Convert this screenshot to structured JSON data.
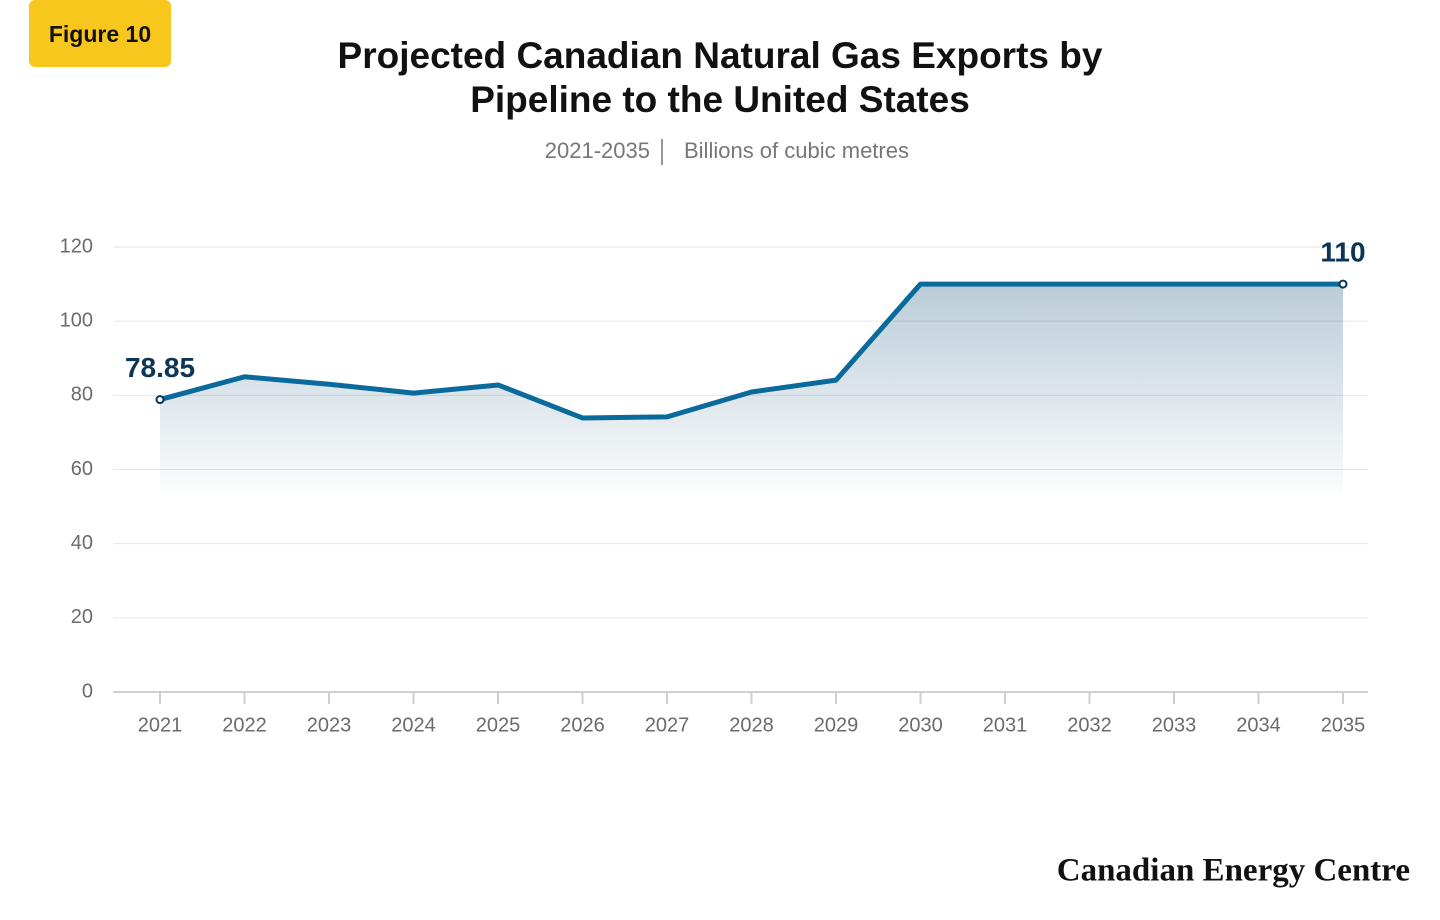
{
  "figure_label": "Figure 10",
  "chart_data": {
    "type": "line",
    "title": [
      "Projected Canadian Natural Gas Exports by",
      "Pipeline to the United States"
    ],
    "subtitle": "2021-2035",
    "unit": "Billions of cubic metres",
    "categories": [
      "2021",
      "2022",
      "2023",
      "2024",
      "2025",
      "2026",
      "2027",
      "2028",
      "2029",
      "2030",
      "2031",
      "2032",
      "2033",
      "2034",
      "2035"
    ],
    "series": [
      {
        "name": "Exports",
        "color": "#0b6a9c",
        "values": [
          78.85,
          85,
          83,
          80.6,
          82.8,
          73.9,
          74.2,
          80.9,
          84.1,
          110,
          110,
          110,
          110,
          110,
          110
        ]
      }
    ],
    "ylim": [
      0,
      120
    ],
    "yticks": [
      0,
      20,
      40,
      60,
      80,
      100,
      120
    ],
    "grid": true
  },
  "footer": {
    "brand": "Canadian Energy Centre"
  }
}
